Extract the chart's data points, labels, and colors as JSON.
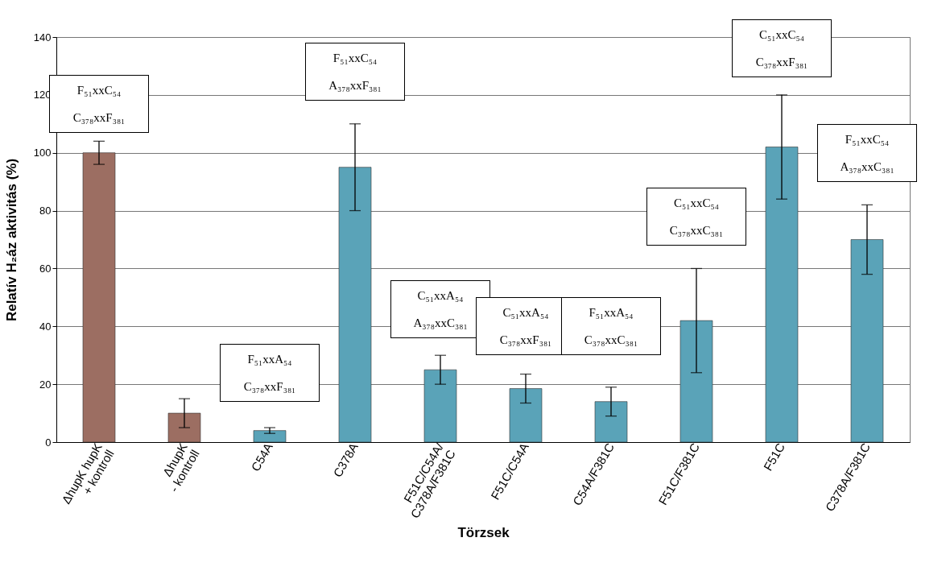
{
  "chart_data": {
    "type": "bar",
    "xlabel": "Törzsek",
    "ylabel": "Relatív H₂áz aktivitás (%)",
    "categories": [
      "ΔhupK hupK\n+ kontroll",
      "ΔhupK\n- kontroll",
      "C54A",
      "C378A",
      "F51C/C54A/\nC378A/F381C",
      "F51C/C54A",
      "C54A/F381C",
      "F51C/F381C",
      "F51C",
      "C378A/F381C"
    ],
    "values": [
      100,
      10,
      4,
      95,
      25,
      18.5,
      14,
      42,
      102,
      70
    ],
    "errors": [
      4,
      5,
      1,
      15,
      5,
      5,
      5,
      18,
      18,
      12
    ],
    "colors": [
      "#9c6e62",
      "#9c6e62",
      "#5aa3b8",
      "#5aa3b8",
      "#5aa3b8",
      "#5aa3b8",
      "#5aa3b8",
      "#5aa3b8",
      "#5aa3b8",
      "#5aa3b8"
    ],
    "ylim": [
      0,
      140
    ],
    "yticks": [
      0,
      20,
      40,
      60,
      80,
      100,
      120,
      140
    ],
    "grid": "y",
    "annotations": [
      "F₅₁xxC₅₄",
      "C₃₇₈xxF₃₈₁",
      "F₅₁xxA₅₄",
      "C₃₇₈xxF₃₈₁",
      "F₅₁xxC₅₄",
      "A₃₇₈xxF₃₈₁",
      "C₅₁xxA₅₄",
      "A₃₇₈xxC₃₈₁",
      "C₅₁xxA₅₄",
      "C₃₇₈xxF₃₈₁",
      "F₅₁xxA₅₄",
      "C₃₇₈xxC₃₈₁",
      "C₅₁xxC₅₄",
      "C₃₇₈xxC₃₈₁",
      "C₅₁xxC₅₄",
      "C₃₇₈xxF₃₈₁",
      "F₅₁xxC₅₄",
      "A₃₇₈xxC₃₈₁"
    ]
  }
}
